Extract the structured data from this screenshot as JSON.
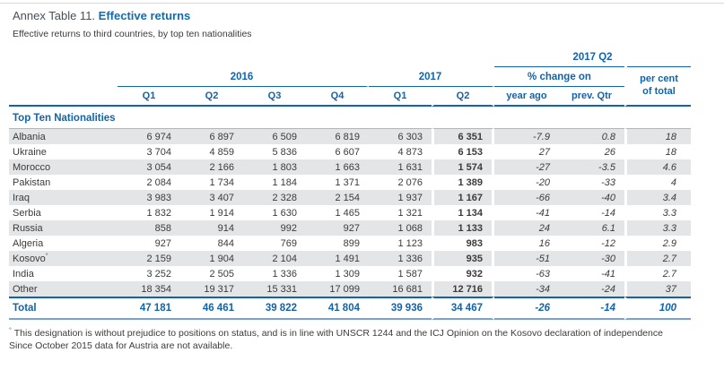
{
  "page": {
    "title_prefix": "Annex Table 11.",
    "title": "Effective returns",
    "subtitle": "Effective returns to third countries, by top ten nationalities"
  },
  "table": {
    "header": {
      "group_2016": "2016",
      "group_2017": "2017",
      "group_2017_q2": "2017 Q2",
      "pct_change_on": "% change on",
      "per_cent_line1": "per cent",
      "per_cent_line2": "of total",
      "quarters": [
        "Q1",
        "Q2",
        "Q3",
        "Q4",
        "Q1",
        "Q2"
      ],
      "year_ago": "year ago",
      "prev_qtr": "prev. Qtr"
    },
    "section_heading": "Top Ten Nationalities",
    "rows": [
      {
        "nationality": "Albania",
        "marker": "",
        "values": [
          "6 974",
          "6 897",
          "6 509",
          "6 819",
          "6 303",
          "6 351"
        ],
        "year_ago": "-7.9",
        "prev_qtr": "0.8",
        "pct_total": "18"
      },
      {
        "nationality": "Ukraine",
        "marker": "",
        "values": [
          "3 704",
          "4 859",
          "5 836",
          "6 607",
          "4 873",
          "6 153"
        ],
        "year_ago": "27",
        "prev_qtr": "26",
        "pct_total": "18"
      },
      {
        "nationality": "Morocco",
        "marker": "",
        "values": [
          "3 054",
          "2 166",
          "1 803",
          "1 663",
          "1 631",
          "1 574"
        ],
        "year_ago": "-27",
        "prev_qtr": "-3.5",
        "pct_total": "4.6"
      },
      {
        "nationality": "Pakistan",
        "marker": "",
        "values": [
          "2 084",
          "1 734",
          "1 184",
          "1 371",
          "2 076",
          "1 389"
        ],
        "year_ago": "-20",
        "prev_qtr": "-33",
        "pct_total": "4"
      },
      {
        "nationality": "Iraq",
        "marker": "",
        "values": [
          "3 983",
          "3 407",
          "2 328",
          "2 154",
          "1 937",
          "1 167"
        ],
        "year_ago": "-66",
        "prev_qtr": "-40",
        "pct_total": "3.4"
      },
      {
        "nationality": "Serbia",
        "marker": "",
        "values": [
          "1 832",
          "1 914",
          "1 630",
          "1 465",
          "1 321",
          "1 134"
        ],
        "year_ago": "-41",
        "prev_qtr": "-14",
        "pct_total": "3.3"
      },
      {
        "nationality": "Russia",
        "marker": "",
        "values": [
          "858",
          "914",
          "992",
          "927",
          "1 068",
          "1 133"
        ],
        "year_ago": "24",
        "prev_qtr": "6.1",
        "pct_total": "3.3"
      },
      {
        "nationality": "Algeria",
        "marker": "",
        "values": [
          "927",
          "844",
          "769",
          "899",
          "1 123",
          "983"
        ],
        "year_ago": "16",
        "prev_qtr": "-12",
        "pct_total": "2.9"
      },
      {
        "nationality": "Kosovo",
        "marker": "°",
        "values": [
          "2 159",
          "1 904",
          "2 104",
          "1 491",
          "1 336",
          "935"
        ],
        "year_ago": "-51",
        "prev_qtr": "-30",
        "pct_total": "2.7"
      },
      {
        "nationality": "India",
        "marker": "",
        "values": [
          "3 252",
          "2 505",
          "1 336",
          "1 309",
          "1 587",
          "932"
        ],
        "year_ago": "-63",
        "prev_qtr": "-41",
        "pct_total": "2.7"
      },
      {
        "nationality": "Other",
        "marker": "",
        "values": [
          "18 354",
          "19 317",
          "15 331",
          "17 099",
          "16 681",
          "12 716"
        ],
        "year_ago": "-34",
        "prev_qtr": "-24",
        "pct_total": "37"
      }
    ],
    "total": {
      "label": "Total",
      "values": [
        "47 181",
        "46 461",
        "39 822",
        "41 804",
        "39 936",
        "34 467"
      ],
      "year_ago": "-26",
      "prev_qtr": "-14",
      "pct_total": "100"
    }
  },
  "footnote": {
    "marker": "°",
    "line1": "This designation is without prejudice to positions on status, and is in line with UNSCR 1244 and the ICJ Opinion on the Kosovo declaration of independence",
    "line2": "Since October 2015 data for Austria are not available."
  },
  "colors": {
    "accent": "#1064ad",
    "title-blue": "#0d6db6",
    "dark-text": "#3b3b3b",
    "stripe": "#e4e5e7",
    "total-underline": "#74a5d2"
  }
}
